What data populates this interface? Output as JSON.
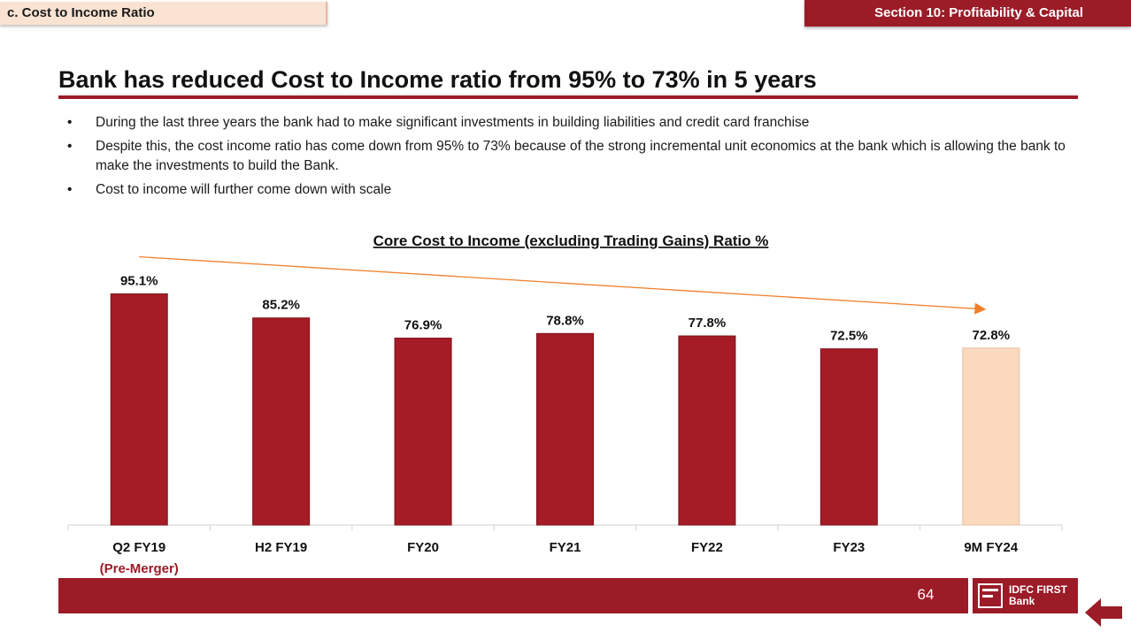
{
  "header": {
    "section_tag": "c. Cost to Income Ratio",
    "section_title": "Section 10:  Profitability & Capital"
  },
  "headline": "Bank has reduced Cost to Income ratio from 95% to 73% in 5 years",
  "bullets": [
    "During the last three years the bank had to make significant investments in building liabilities and credit card franchise",
    "Despite this, the cost income ratio has come down from 95% to 73% because of the strong incremental unit economics at the bank which is allowing the bank to make the investments to build the Bank.",
    "Cost to income will further come down with scale"
  ],
  "bullet_glyph": "•",
  "chart_data": {
    "type": "bar",
    "title": "Core Cost to Income (excluding Trading Gains) Ratio %",
    "categories": [
      "Q2 FY19",
      "H2 FY19",
      "FY20",
      "FY21",
      "FY22",
      "FY23",
      "9M FY24"
    ],
    "category_sublabels": [
      "(Pre-Merger)",
      "",
      "",
      "",
      "",
      "",
      ""
    ],
    "values": [
      95.1,
      85.2,
      76.9,
      78.8,
      77.8,
      72.5,
      72.8
    ],
    "value_labels": [
      "95.1%",
      "85.2%",
      "76.9%",
      "78.8%",
      "77.8%",
      "72.5%",
      "72.8%"
    ],
    "ylim": [
      0,
      100
    ],
    "grid": false,
    "legend": "none",
    "bar_color": "#a51c26",
    "highlight_bar_color": "#fcd9bd",
    "highlight_index": 6,
    "trend_arrow": {
      "from_category": "Q2 FY19",
      "to_category": "9M FY24",
      "color": "#f07f2b"
    }
  },
  "footer": {
    "page_number": "64",
    "logo_line1": "IDFC FIRST",
    "logo_line2": "Bank",
    "back_icon": "left-arrow-icon"
  }
}
